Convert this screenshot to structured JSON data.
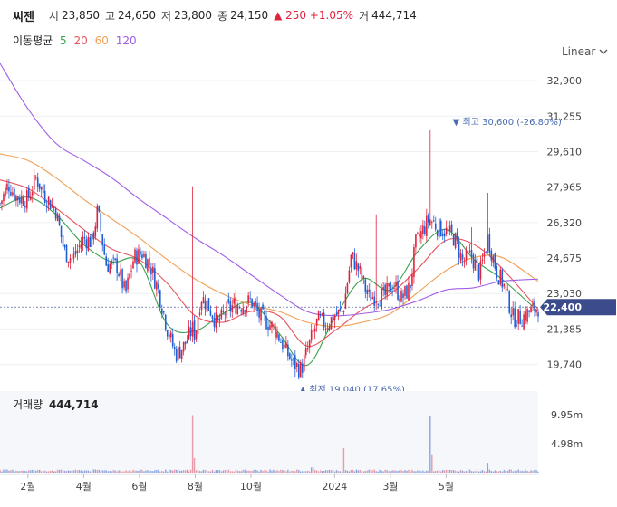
{
  "header": {
    "name": "씨젠",
    "open_label": "시",
    "open": "23,850",
    "high_label": "고",
    "high": "24,650",
    "low_label": "저",
    "low": "23,800",
    "close_label": "종",
    "close": "24,150",
    "change": "▲ 250 +1.05%",
    "volume_label": "거",
    "volume": "444,714"
  },
  "ma": {
    "label": "이동평균",
    "periods": [
      {
        "label": "5",
        "color": "#37a04a"
      },
      {
        "label": "20",
        "color": "#e8545b"
      },
      {
        "label": "60",
        "color": "#f0a054"
      },
      {
        "label": "120",
        "color": "#a15ee8"
      }
    ]
  },
  "scale": {
    "label": "Linear"
  },
  "volume_panel": {
    "label": "거래량",
    "value": "444,714"
  },
  "colors": {
    "up": "#e0233d",
    "down": "#1f5fd6",
    "price_tag": "#3b4b8c",
    "annotation": "#4a6ab0"
  },
  "chart_data": {
    "type": "candlestick",
    "price_axis": {
      "ticks": [
        19740,
        21385,
        23030,
        24675,
        26320,
        27965,
        29610,
        31255,
        32900
      ],
      "tick_labels": [
        "19,740",
        "21,385",
        "23,030",
        "24,675",
        "26,320",
        "27,965",
        "29,610",
        "31,255",
        "32,900"
      ],
      "range": [
        18800,
        33700
      ]
    },
    "current_price": {
      "value": 22400,
      "label": "22,400"
    },
    "annotations": [
      {
        "type": "high",
        "text": "▼ 최고 30,600 (-26.80%)",
        "value": 30600,
        "month_index": 16.3
      },
      {
        "type": "low",
        "text": "▲ 최저 19,040 (17.65%)",
        "value": 19040,
        "month_index": 10.8
      }
    ],
    "x_axis": {
      "month_range": [
        0,
        19.3
      ],
      "labels": [
        {
          "text": "2월",
          "month_index": 1
        },
        {
          "text": "4월",
          "month_index": 3
        },
        {
          "text": "6월",
          "month_index": 5
        },
        {
          "text": "8월",
          "month_index": 7
        },
        {
          "text": "10월",
          "month_index": 9
        },
        {
          "text": "2024",
          "month_index": 12
        },
        {
          "text": "3월",
          "month_index": 14
        },
        {
          "text": "5월",
          "month_index": 16
        }
      ]
    },
    "close_path": [
      [
        0.0,
        27200
      ],
      [
        0.3,
        28100
      ],
      [
        0.6,
        27500
      ],
      [
        1.0,
        27400
      ],
      [
        1.3,
        28400
      ],
      [
        1.6,
        27600
      ],
      [
        2.0,
        26900
      ],
      [
        2.3,
        25000
      ],
      [
        2.6,
        24600
      ],
      [
        3.0,
        25600
      ],
      [
        3.3,
        25400
      ],
      [
        3.5,
        26900
      ],
      [
        3.8,
        24400
      ],
      [
        4.2,
        24300
      ],
      [
        4.5,
        23000
      ],
      [
        4.8,
        24700
      ],
      [
        5.1,
        24900
      ],
      [
        5.4,
        24300
      ],
      [
        5.7,
        23100
      ],
      [
        6.0,
        21400
      ],
      [
        6.3,
        20200
      ],
      [
        6.6,
        20600
      ],
      [
        6.9,
        21400
      ],
      [
        7.0,
        21100
      ],
      [
        7.2,
        22900
      ],
      [
        7.5,
        22400
      ],
      [
        7.8,
        21600
      ],
      [
        8.1,
        22200
      ],
      [
        8.4,
        22500
      ],
      [
        8.7,
        22500
      ],
      [
        9.0,
        22700
      ],
      [
        9.3,
        22000
      ],
      [
        9.6,
        21700
      ],
      [
        9.9,
        21300
      ],
      [
        10.2,
        20500
      ],
      [
        10.5,
        19800
      ],
      [
        10.8,
        19500
      ],
      [
        11.1,
        20700
      ],
      [
        11.4,
        21800
      ],
      [
        11.7,
        21600
      ],
      [
        12.0,
        22000
      ],
      [
        12.3,
        22200
      ],
      [
        12.6,
        24800
      ],
      [
        12.9,
        24000
      ],
      [
        13.2,
        22900
      ],
      [
        13.5,
        22900
      ],
      [
        13.8,
        22900
      ],
      [
        14.1,
        23500
      ],
      [
        14.4,
        22800
      ],
      [
        14.7,
        23300
      ],
      [
        14.9,
        25300
      ],
      [
        15.1,
        25800
      ],
      [
        15.4,
        26500
      ],
      [
        15.7,
        26100
      ],
      [
        16.0,
        25900
      ],
      [
        16.3,
        25600
      ],
      [
        16.6,
        24500
      ],
      [
        16.9,
        24800
      ],
      [
        17.2,
        23900
      ],
      [
        17.5,
        25600
      ],
      [
        17.8,
        24100
      ],
      [
        18.1,
        23300
      ],
      [
        18.4,
        21900
      ],
      [
        18.7,
        21900
      ],
      [
        19.0,
        22200
      ],
      [
        19.3,
        22400
      ]
    ],
    "spikes": [
      {
        "month_index": 6.9,
        "high": 28000
      },
      {
        "month_index": 15.4,
        "high": 30600
      },
      {
        "month_index": 16.9,
        "high": 26100
      },
      {
        "month_index": 17.5,
        "high": 27700
      },
      {
        "month_index": 13.5,
        "high": 26700
      }
    ],
    "moving_averages": [
      {
        "period": "5",
        "color": "#37a04a",
        "points": [
          [
            0.0,
            27000
          ],
          [
            1.0,
            27500
          ],
          [
            2.0,
            26700
          ],
          [
            3.0,
            25300
          ],
          [
            4.0,
            24500
          ],
          [
            5.0,
            24500
          ],
          [
            6.0,
            21600
          ],
          [
            7.0,
            21300
          ],
          [
            8.0,
            22100
          ],
          [
            9.0,
            22600
          ],
          [
            10.0,
            21200
          ],
          [
            11.0,
            19700
          ],
          [
            12.0,
            21900
          ],
          [
            13.0,
            23700
          ],
          [
            14.0,
            23200
          ],
          [
            15.0,
            25000
          ],
          [
            16.0,
            26000
          ],
          [
            17.0,
            24600
          ],
          [
            18.0,
            23700
          ],
          [
            19.3,
            22200
          ]
        ]
      },
      {
        "period": "20",
        "color": "#e8545b",
        "points": [
          [
            0.0,
            28300
          ],
          [
            1.0,
            27900
          ],
          [
            2.0,
            27000
          ],
          [
            3.0,
            26000
          ],
          [
            4.0,
            25100
          ],
          [
            5.0,
            24600
          ],
          [
            6.0,
            23500
          ],
          [
            7.0,
            22000
          ],
          [
            8.0,
            21700
          ],
          [
            9.0,
            22200
          ],
          [
            10.0,
            22000
          ],
          [
            11.0,
            20600
          ],
          [
            12.0,
            21300
          ],
          [
            13.0,
            22300
          ],
          [
            14.0,
            23000
          ],
          [
            15.0,
            24200
          ],
          [
            16.0,
            25500
          ],
          [
            17.0,
            25300
          ],
          [
            18.0,
            24200
          ],
          [
            19.3,
            22300
          ]
        ]
      },
      {
        "period": "60",
        "color": "#f0a054",
        "points": [
          [
            0.0,
            29500
          ],
          [
            1.0,
            29200
          ],
          [
            2.0,
            28400
          ],
          [
            3.0,
            27400
          ],
          [
            4.0,
            26500
          ],
          [
            5.0,
            25600
          ],
          [
            6.0,
            24600
          ],
          [
            7.0,
            23700
          ],
          [
            8.0,
            23000
          ],
          [
            9.0,
            22500
          ],
          [
            10.0,
            22200
          ],
          [
            11.0,
            21700
          ],
          [
            12.0,
            21500
          ],
          [
            13.0,
            21700
          ],
          [
            14.0,
            22100
          ],
          [
            15.0,
            23100
          ],
          [
            16.0,
            24100
          ],
          [
            17.0,
            24700
          ],
          [
            18.0,
            24700
          ],
          [
            19.3,
            23600
          ]
        ]
      },
      {
        "period": "120",
        "color": "#a15ee8",
        "points": [
          [
            0.0,
            33700
          ],
          [
            1.0,
            31600
          ],
          [
            2.0,
            30000
          ],
          [
            3.0,
            29200
          ],
          [
            4.0,
            28400
          ],
          [
            5.0,
            27400
          ],
          [
            6.0,
            26500
          ],
          [
            7.0,
            25600
          ],
          [
            8.0,
            24800
          ],
          [
            9.0,
            23900
          ],
          [
            10.0,
            23000
          ],
          [
            11.0,
            22200
          ],
          [
            12.0,
            22000
          ],
          [
            13.0,
            22100
          ],
          [
            14.0,
            22300
          ],
          [
            15.0,
            22700
          ],
          [
            16.0,
            23200
          ],
          [
            17.0,
            23300
          ],
          [
            18.0,
            23600
          ],
          [
            19.3,
            23700
          ]
        ]
      }
    ],
    "volume_axis": {
      "ticks": [
        4980000,
        9950000
      ],
      "tick_labels": [
        "4.98m",
        "9.95m"
      ],
      "max": 12000000
    },
    "volume_spikes": [
      {
        "month_index": 6.9,
        "value": 9900000
      },
      {
        "month_index": 7.0,
        "value": 2500000
      },
      {
        "month_index": 12.3,
        "value": 4200000
      },
      {
        "month_index": 15.4,
        "value": 9800000
      },
      {
        "month_index": 15.5,
        "value": 3000000
      },
      {
        "month_index": 17.5,
        "value": 1700000
      },
      {
        "month_index": 11.2,
        "value": 900000
      }
    ]
  }
}
